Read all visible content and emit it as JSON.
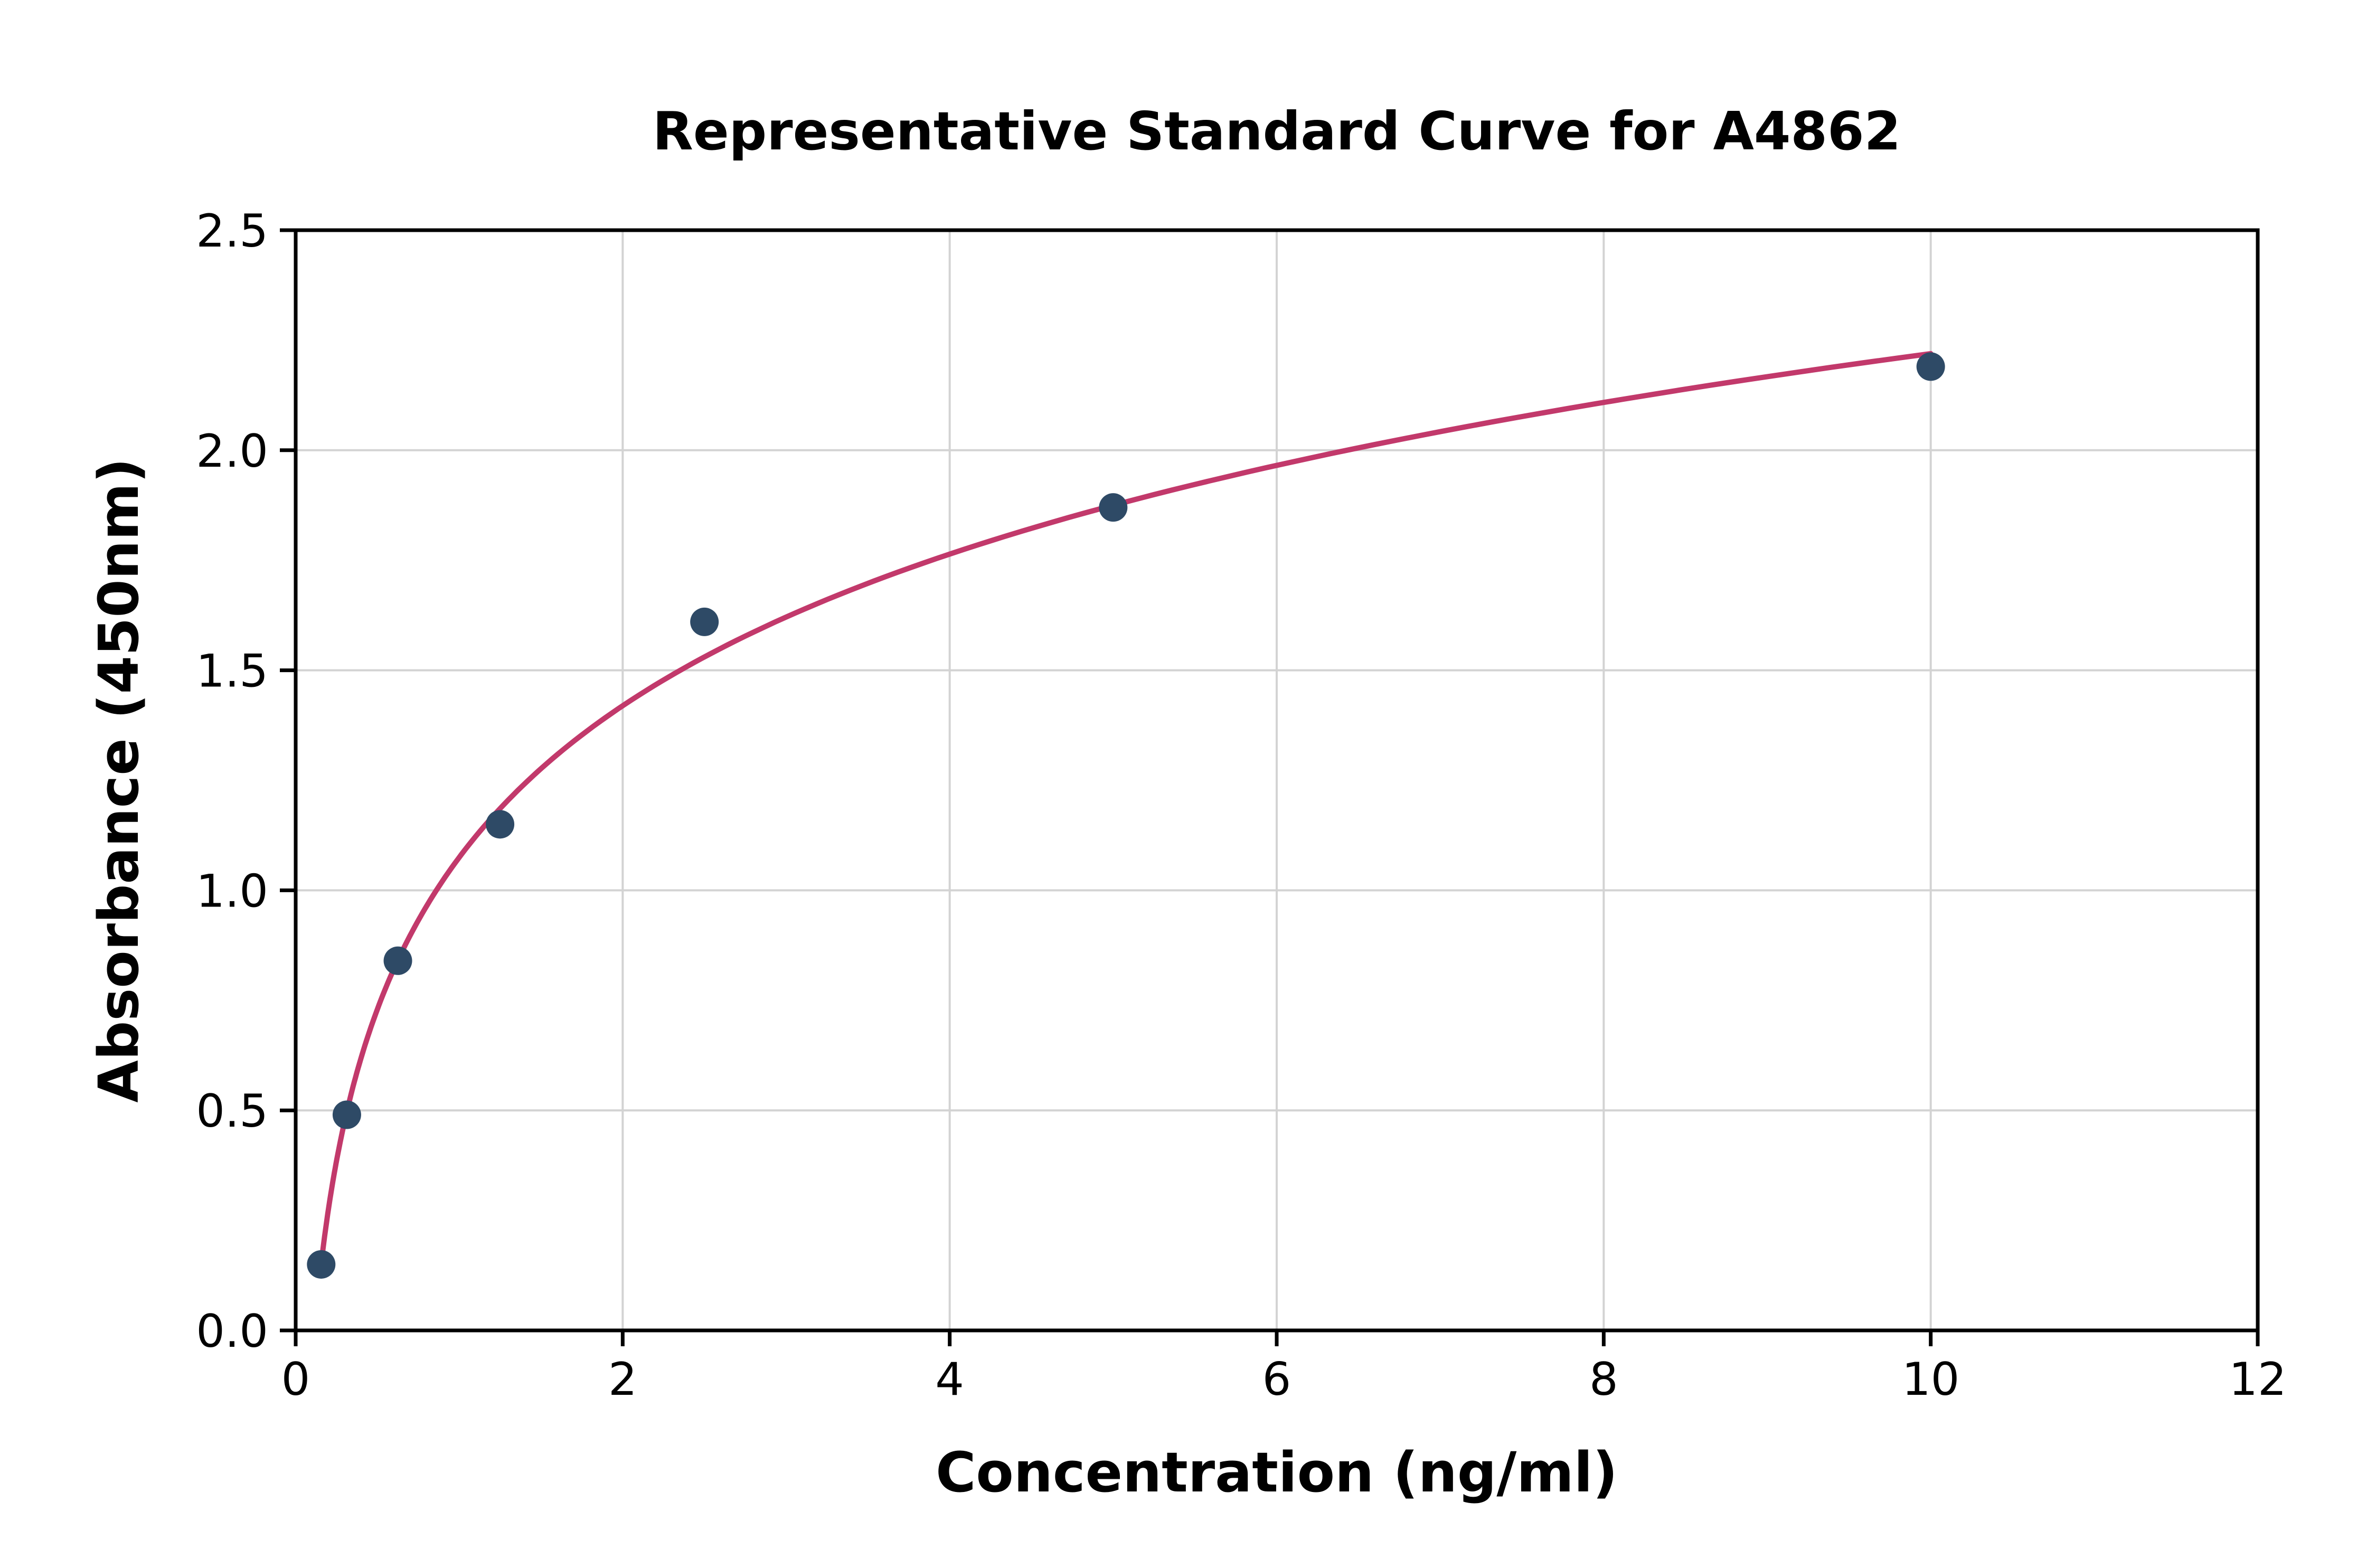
{
  "page": {
    "background": "#ffffff"
  },
  "chart_data": {
    "type": "scatter",
    "title": "Representative Standard Curve for A4862",
    "xlabel": "Concentration (ng/ml)",
    "ylabel": "Absorbance (450nm)",
    "x": [
      0.156,
      0.313,
      0.625,
      1.25,
      2.5,
      5,
      10
    ],
    "y": [
      0.15,
      0.49,
      0.84,
      1.15,
      1.61,
      1.87,
      2.19
    ],
    "fit": "logarithmic",
    "xlim": [
      0,
      12
    ],
    "ylim": [
      0,
      2.5
    ],
    "xticks": [
      0,
      2,
      4,
      6,
      8,
      10,
      12
    ],
    "xtick_labels": [
      "0",
      "2",
      "4",
      "6",
      "8",
      "10",
      "12"
    ],
    "yticks": [
      0,
      0.5,
      1.0,
      1.5,
      2.0,
      2.5
    ],
    "ytick_labels": [
      "0.0",
      "0.5",
      "1.0",
      "1.5",
      "2.0",
      "2.5"
    ],
    "grid": true,
    "legend_position": "none",
    "colors": {
      "curve": "#C2396B",
      "points": "#2E4A66",
      "grid": "#D3D3D3",
      "spine": "#000000",
      "text": "#000000"
    }
  }
}
